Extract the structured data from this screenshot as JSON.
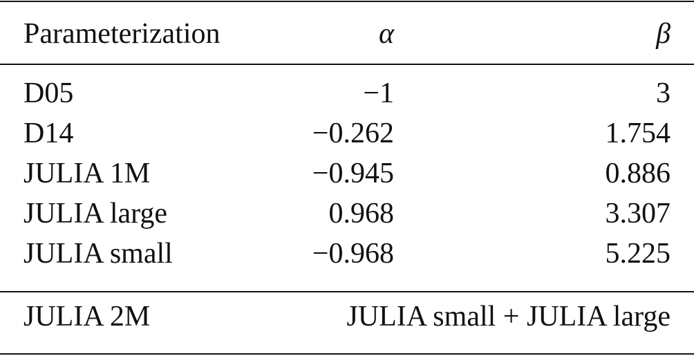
{
  "table": {
    "header": [
      "Parameterization",
      "α",
      "β"
    ],
    "rows": [
      [
        "D05",
        "−1",
        "3"
      ],
      [
        "D14",
        "−0.262",
        "1.754"
      ],
      [
        "JULIA 1M",
        "−0.945",
        "0.886"
      ],
      [
        "JULIA large",
        "0.968",
        "3.307"
      ],
      [
        "JULIA small",
        "−0.968",
        "5.225"
      ]
    ],
    "footer": {
      "label": "JULIA 2M",
      "value": "JULIA small + JULIA large"
    }
  }
}
